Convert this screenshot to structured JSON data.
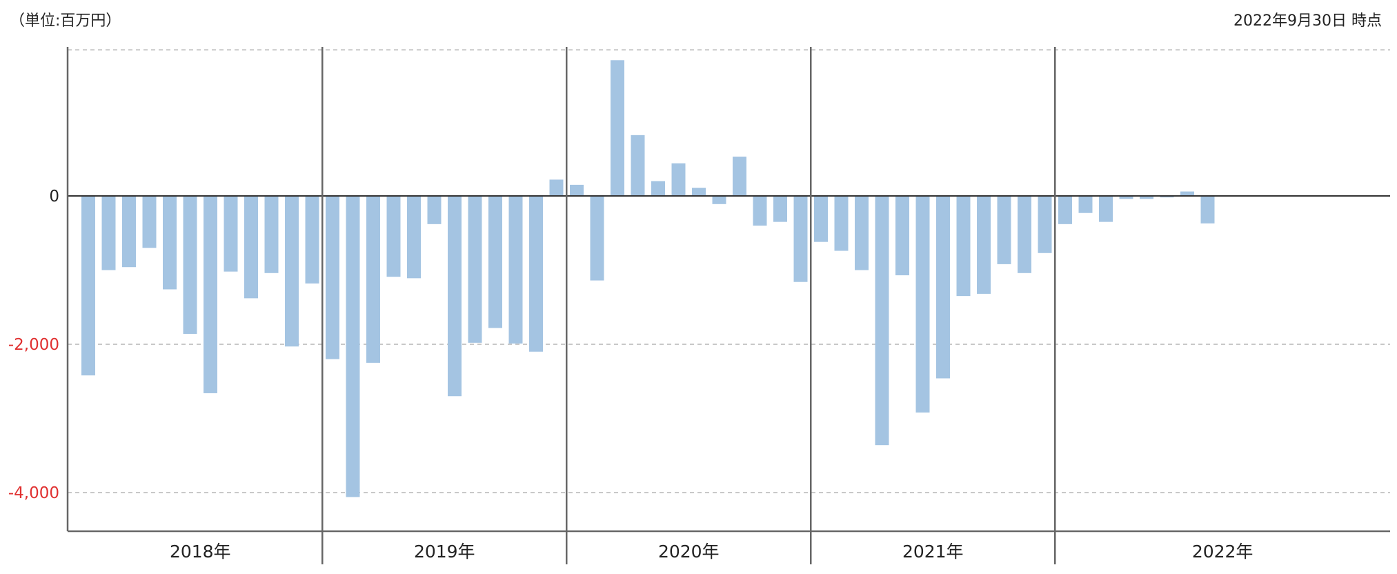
{
  "header": {
    "unit": "（単位:百万円）",
    "as_of": "2022年9月30日 時点"
  },
  "colors": {
    "bar": "#a4c4e2",
    "zero_line": "#333333",
    "grid": "#c8c8c8",
    "negative_tick": "#e03030",
    "zero_tick": "#222222",
    "divider": "#666666"
  },
  "chart_data": {
    "type": "bar",
    "ylim": [
      -4500,
      2000
    ],
    "yticks": [
      {
        "value": 0,
        "label": "0"
      },
      {
        "value": -2000,
        "label": "-2,000"
      },
      {
        "value": -4000,
        "label": "-4,000"
      }
    ],
    "grid": true,
    "groups": [
      {
        "label": "2018年",
        "values": [
          -2420,
          -1000,
          -960,
          -700,
          -1260,
          -1860,
          -2660,
          -1020,
          -1380,
          -1040,
          -2030,
          -1180
        ]
      },
      {
        "label": "2019年",
        "values": [
          -2200,
          -4060,
          -2250,
          -1090,
          -1110,
          -380,
          -2700,
          -1980,
          -1780,
          -1990,
          -2100,
          220
        ]
      },
      {
        "label": "2020年",
        "values": [
          150,
          -1140,
          1830,
          820,
          200,
          440,
          110,
          -110,
          530,
          -400,
          -350,
          -1160
        ]
      },
      {
        "label": "2021年",
        "values": [
          -620,
          -740,
          -1000,
          -3360,
          -1070,
          -2920,
          -2460,
          -1350,
          -1320,
          -920,
          -1040,
          -770
        ]
      },
      {
        "label": "2022年",
        "values": [
          -380,
          -230,
          -350,
          -40,
          -40,
          -20,
          60,
          -370
        ]
      }
    ]
  }
}
